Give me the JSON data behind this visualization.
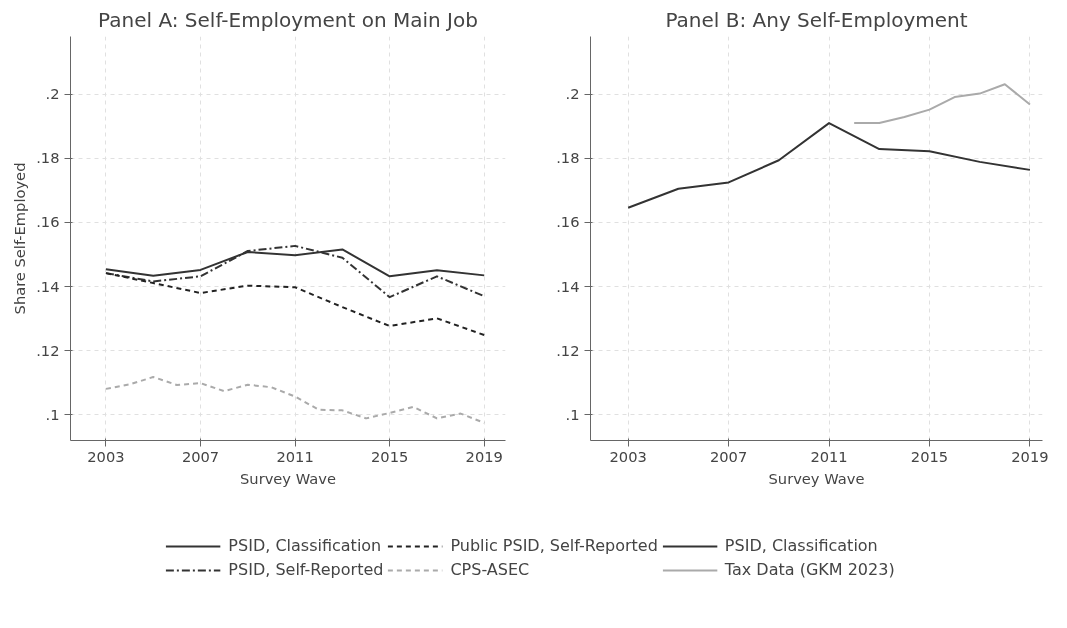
{
  "chart_data": [
    {
      "type": "line",
      "title": "Panel A: Self-Employment on Main Job",
      "xlabel": "Survey Wave",
      "ylabel": "Share Self-Employed",
      "xlim": [
        2001.5,
        2019.9
      ],
      "xticks": [
        2003,
        2007,
        2011,
        2015,
        2019
      ],
      "ylim": [
        0.092,
        0.218
      ],
      "yticks": [
        {
          "value": 0.1,
          "label": ".1"
        },
        {
          "value": 0.12,
          "label": ".12"
        },
        {
          "value": 0.14,
          "label": ".14"
        },
        {
          "value": 0.16,
          "label": ".16"
        },
        {
          "value": 0.18,
          "label": ".18"
        },
        {
          "value": 0.2,
          "label": ".2"
        }
      ],
      "grid": true,
      "legend": "bottom",
      "series": [
        {
          "name": "PSID, Classification",
          "color": "#333333",
          "line_style": "solid",
          "x": [
            2003,
            2005,
            2007,
            2009,
            2011,
            2013,
            2015,
            2017,
            2019
          ],
          "values": [
            0.1454,
            0.1434,
            0.1452,
            0.1508,
            0.1498,
            0.1516,
            0.1432,
            0.1451,
            0.1435
          ]
        },
        {
          "name": "PSID, Self-Reported",
          "color": "#333333",
          "line_style": "dashdot",
          "x": [
            2003,
            2005,
            2007,
            2009,
            2011,
            2013,
            2015,
            2017,
            2019
          ],
          "values": [
            0.1442,
            0.1416,
            0.1432,
            0.1511,
            0.1527,
            0.149,
            0.1367,
            0.1432,
            0.137
          ]
        },
        {
          "name": "Public PSID, Self-Reported",
          "color": "#222222",
          "line_style": "dashed",
          "x": [
            2003,
            2005,
            2007,
            2009,
            2011,
            2013,
            2015,
            2017,
            2019
          ],
          "values": [
            0.1442,
            0.1411,
            0.138,
            0.1403,
            0.1398,
            0.1336,
            0.1277,
            0.1301,
            0.1249
          ]
        },
        {
          "name": "CPS-ASEC",
          "color": "#aaaaaa",
          "line_style": "dashed",
          "x": [
            2003,
            2004,
            2005,
            2006,
            2007,
            2008,
            2009,
            2010,
            2011,
            2012,
            2013,
            2014,
            2015,
            2016,
            2017,
            2018,
            2019
          ],
          "values": [
            0.1081,
            0.1095,
            0.1118,
            0.1093,
            0.1099,
            0.1074,
            0.1094,
            0.1086,
            0.1057,
            0.1016,
            0.1014,
            0.0989,
            0.1006,
            0.1025,
            0.0989,
            0.1004,
            0.0975
          ]
        }
      ]
    },
    {
      "type": "line",
      "title": "Panel B: Any Self-Employment",
      "xlabel": "Survey Wave",
      "xlim": [
        2001.5,
        2019.5
      ],
      "xticks": [
        2003,
        2007,
        2011,
        2015,
        2019
      ],
      "ylim": [
        0.092,
        0.218
      ],
      "yticks": [
        {
          "value": 0.1,
          "label": ".1"
        },
        {
          "value": 0.12,
          "label": ".12"
        },
        {
          "value": 0.14,
          "label": ".14"
        },
        {
          "value": 0.16,
          "label": ".16"
        },
        {
          "value": 0.18,
          "label": ".18"
        },
        {
          "value": 0.2,
          "label": ".2"
        }
      ],
      "grid": true,
      "legend": "bottom",
      "series": [
        {
          "name": "PSID, Classification",
          "color": "#333333",
          "line_style": "solid",
          "x": [
            2003,
            2005,
            2007,
            2009,
            2011,
            2013,
            2015,
            2017,
            2019
          ],
          "values": [
            0.1646,
            0.1705,
            0.1725,
            0.1794,
            0.191,
            0.1829,
            0.1822,
            0.1789,
            0.1764
          ]
        },
        {
          "name": "Tax Data (GKM 2023)",
          "color": "#aaaaaa",
          "line_style": "solid",
          "x": [
            2012,
            2013,
            2014,
            2015,
            2016,
            2017,
            2018,
            2019
          ],
          "values": [
            0.191,
            0.191,
            0.1929,
            0.1952,
            0.1991,
            0.2002,
            0.2031,
            0.1968
          ]
        }
      ]
    }
  ]
}
